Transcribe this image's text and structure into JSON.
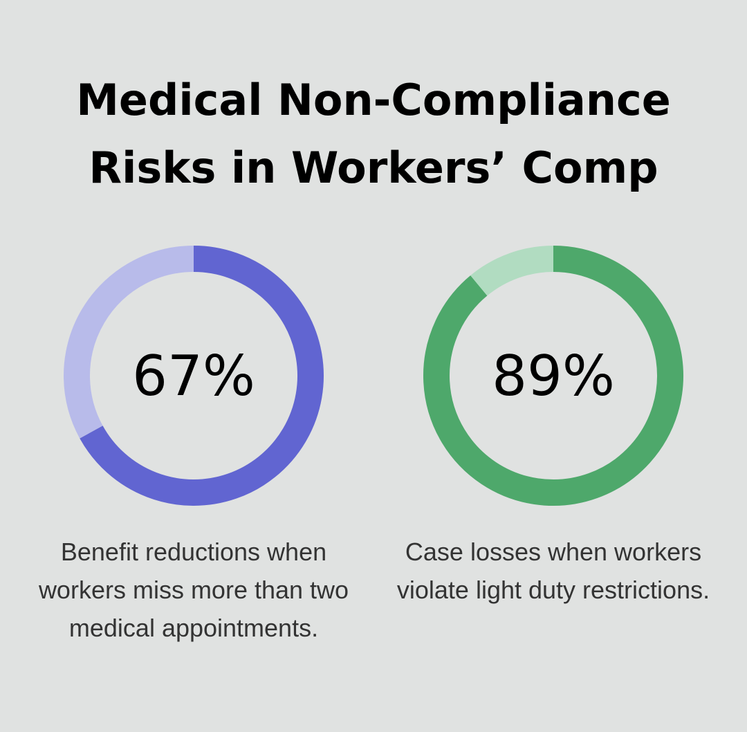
{
  "title": "Medical Non-Compliance Risks in Workers’ Comp",
  "chart_data": [
    {
      "type": "donut",
      "values": [
        67,
        33
      ],
      "value_labels": [
        "67%",
        null
      ],
      "colors": [
        "#6165d1",
        "#b8bbea"
      ],
      "caption": "Benefit reductions when workers miss more than two medical appointments."
    },
    {
      "type": "donut",
      "values": [
        89,
        11
      ],
      "value_labels": [
        "89%",
        null
      ],
      "colors": [
        "#4ea86b",
        "#b1dcc1"
      ],
      "caption": "Case losses when workers violate light duty restrictions."
    }
  ]
}
